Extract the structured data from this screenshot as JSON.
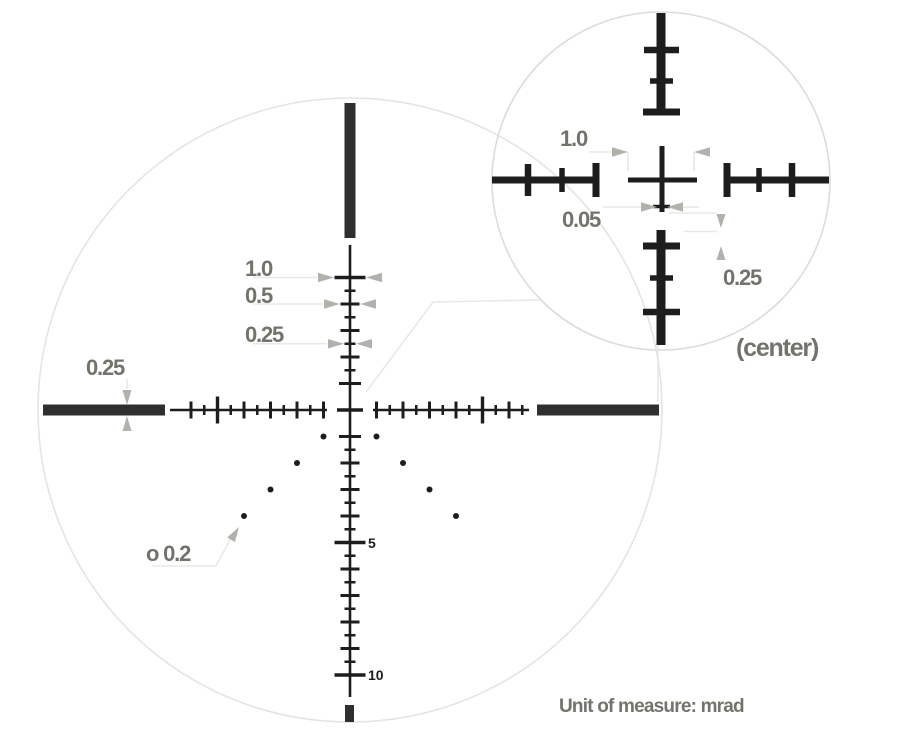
{
  "main_view": {
    "tick_width_labels": {
      "one": "1.0",
      "half": "0.5",
      "quarter": "0.25"
    },
    "post_width_label": "0.25",
    "dot_diameter_label": "o 0.2",
    "holdover_numbers": {
      "five": "5",
      "ten": "10"
    }
  },
  "detail_view": {
    "hash_spacing_label": "1.0",
    "line_thickness_label": "0.05",
    "gap_label": "0.25",
    "caption": "(center)"
  },
  "footer": {
    "unit_note": "Unit of measure: mrad"
  },
  "colors": {
    "reticle": "#1d1d1d",
    "post": "#2f2f2f",
    "label": "#74736b",
    "number": "#1d1d1d",
    "arrow": "#b2b2ad",
    "leader": "#e8e8e4",
    "field_circle": "#e4e4e1",
    "detail_circle": "#dcdcd9"
  }
}
